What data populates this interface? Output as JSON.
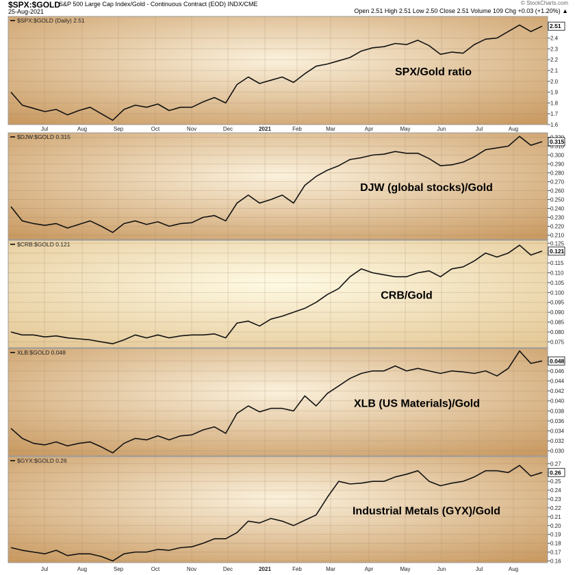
{
  "header": {
    "symbol": "$SPX:$GOLD",
    "description": "S&P 500 Large Cap Index/Gold - Continuous Contract (EOD) INDX/CME",
    "date": "25-Aug-2021",
    "brand": "© StockCharts.com",
    "ohlc": "Open 2.51  High 2.51  Low 2.50  Close 2.51  Volume 109  Chg +0.03 (+1.20%) ▲"
  },
  "chart_data": {
    "type": "line",
    "x_tick_labels": [
      "Jul",
      "Aug",
      "Sep",
      "Oct",
      "Nov",
      "Dec",
      "2021",
      "Feb",
      "Mar",
      "Apr",
      "May",
      "Jun",
      "Jul",
      "Aug"
    ],
    "x_tick_labels_bottom": [
      "Jul",
      "Aug",
      "Sep",
      "Oct",
      "Nov",
      "Dec",
      "2021",
      "Feb",
      "Mar",
      "Apr",
      "May",
      "Jun",
      "Jul",
      "Aug"
    ],
    "panels": [
      {
        "legend": "$SPX:$GOLD (Daily) 2.51",
        "annotation": "SPX/Gold ratio",
        "last_value": "2.51",
        "ylim": [
          1.6,
          2.6
        ],
        "yticks": [
          1.6,
          1.7,
          1.8,
          1.9,
          2.0,
          2.1,
          2.2,
          2.3,
          2.4
        ],
        "ytick_labels": [
          "1.6",
          "1.7",
          "1.8",
          "1.9",
          "2.0",
          "2.1",
          "2.2",
          "2.3",
          "2.4"
        ],
        "values": [
          1.9,
          1.78,
          1.75,
          1.72,
          1.74,
          1.69,
          1.73,
          1.76,
          1.7,
          1.64,
          1.74,
          1.78,
          1.76,
          1.79,
          1.73,
          1.76,
          1.76,
          1.81,
          1.85,
          1.8,
          1.97,
          2.04,
          1.98,
          2.01,
          2.04,
          1.99,
          2.07,
          2.14,
          2.16,
          2.19,
          2.22,
          2.28,
          2.31,
          2.32,
          2.35,
          2.34,
          2.38,
          2.33,
          2.25,
          2.27,
          2.26,
          2.34,
          2.39,
          2.4,
          2.46,
          2.52,
          2.46,
          2.51
        ]
      },
      {
        "legend": "$DJW:$GOLD 0.315",
        "annotation": "DJW (global stocks)/Gold",
        "last_value": "0.315",
        "ylim": [
          0.205,
          0.325
        ],
        "yticks": [
          0.21,
          0.22,
          0.23,
          0.24,
          0.25,
          0.26,
          0.27,
          0.28,
          0.29,
          0.3,
          0.31,
          0.32
        ],
        "ytick_labels": [
          "0.210",
          "0.220",
          "0.230",
          "0.240",
          "0.250",
          "0.260",
          "0.270",
          "0.280",
          "0.290",
          "0.300",
          "0.310",
          "0.320"
        ],
        "values": [
          0.242,
          0.226,
          0.223,
          0.221,
          0.223,
          0.218,
          0.222,
          0.226,
          0.22,
          0.213,
          0.223,
          0.226,
          0.222,
          0.225,
          0.22,
          0.223,
          0.224,
          0.23,
          0.232,
          0.226,
          0.246,
          0.255,
          0.246,
          0.25,
          0.255,
          0.246,
          0.266,
          0.276,
          0.283,
          0.288,
          0.295,
          0.297,
          0.3,
          0.301,
          0.304,
          0.302,
          0.302,
          0.296,
          0.288,
          0.289,
          0.292,
          0.298,
          0.306,
          0.308,
          0.31,
          0.321,
          0.311,
          0.315
        ]
      },
      {
        "legend": "$CRB:$GOLD 0.121",
        "annotation": "CRB/Gold",
        "last_value": "0.121",
        "ylim": [
          0.072,
          0.1265
        ],
        "yticks": [
          0.075,
          0.08,
          0.085,
          0.09,
          0.095,
          0.1,
          0.105,
          0.11,
          0.115,
          0.12,
          0.125
        ],
        "ytick_labels": [
          "0.075",
          "0.080",
          "0.085",
          "0.090",
          "0.095",
          "0.100",
          "0.105",
          "0.110",
          "0.115",
          "0.120",
          "0.125"
        ],
        "values": [
          0.08,
          0.0785,
          0.0785,
          0.0775,
          0.078,
          0.077,
          0.0765,
          0.076,
          0.075,
          0.074,
          0.076,
          0.0785,
          0.077,
          0.0785,
          0.077,
          0.078,
          0.0785,
          0.0785,
          0.079,
          0.077,
          0.0845,
          0.0855,
          0.083,
          0.0865,
          0.088,
          0.09,
          0.092,
          0.095,
          0.099,
          0.102,
          0.108,
          0.112,
          0.11,
          0.109,
          0.108,
          0.108,
          0.11,
          0.111,
          0.108,
          0.112,
          0.113,
          0.116,
          0.12,
          0.118,
          0.12,
          0.124,
          0.119,
          0.121
        ]
      },
      {
        "legend": "XLB:$GOLD 0.048",
        "annotation": "XLB (US Materials)/Gold",
        "last_value": "0.048",
        "ylim": [
          0.029,
          0.0505
        ],
        "yticks": [
          0.03,
          0.032,
          0.034,
          0.036,
          0.038,
          0.04,
          0.042,
          0.044,
          0.046,
          0.048
        ],
        "ytick_labels": [
          "0.030",
          "0.032",
          "0.034",
          "0.036",
          "0.038",
          "0.040",
          "0.042",
          "0.044",
          "0.046",
          "0.048"
        ],
        "values": [
          0.0345,
          0.0325,
          0.0315,
          0.0312,
          0.0318,
          0.031,
          0.0315,
          0.0318,
          0.0308,
          0.0296,
          0.0315,
          0.0325,
          0.0322,
          0.033,
          0.0322,
          0.033,
          0.0332,
          0.0342,
          0.0348,
          0.0335,
          0.0375,
          0.039,
          0.0378,
          0.0385,
          0.0385,
          0.038,
          0.041,
          0.039,
          0.0415,
          0.043,
          0.0445,
          0.0455,
          0.046,
          0.046,
          0.047,
          0.046,
          0.0465,
          0.046,
          0.0455,
          0.046,
          0.0458,
          0.0455,
          0.046,
          0.045,
          0.0465,
          0.05,
          0.0475,
          0.048
        ]
      },
      {
        "legend": "$GYX:$GOLD 0.26",
        "annotation": "Industrial Metals (GYX)/Gold",
        "last_value": "0.26",
        "ylim": [
          0.158,
          0.278
        ],
        "yticks": [
          0.16,
          0.17,
          0.18,
          0.19,
          0.2,
          0.21,
          0.22,
          0.23,
          0.24,
          0.25,
          0.26,
          0.27
        ],
        "ytick_labels": [
          "0.16",
          "0.17",
          "0.18",
          "0.19",
          "0.20",
          "0.21",
          "0.22",
          "0.23",
          "0.24",
          "0.25",
          "0.26",
          "0.27"
        ],
        "values": [
          0.175,
          0.172,
          0.17,
          0.168,
          0.172,
          0.166,
          0.168,
          0.168,
          0.165,
          0.16,
          0.168,
          0.17,
          0.17,
          0.173,
          0.172,
          0.175,
          0.176,
          0.18,
          0.185,
          0.185,
          0.192,
          0.205,
          0.203,
          0.208,
          0.205,
          0.2,
          0.206,
          0.212,
          0.232,
          0.25,
          0.247,
          0.248,
          0.25,
          0.25,
          0.255,
          0.258,
          0.262,
          0.25,
          0.245,
          0.248,
          0.25,
          0.255,
          0.262,
          0.262,
          0.26,
          0.268,
          0.256,
          0.26
        ]
      }
    ]
  }
}
